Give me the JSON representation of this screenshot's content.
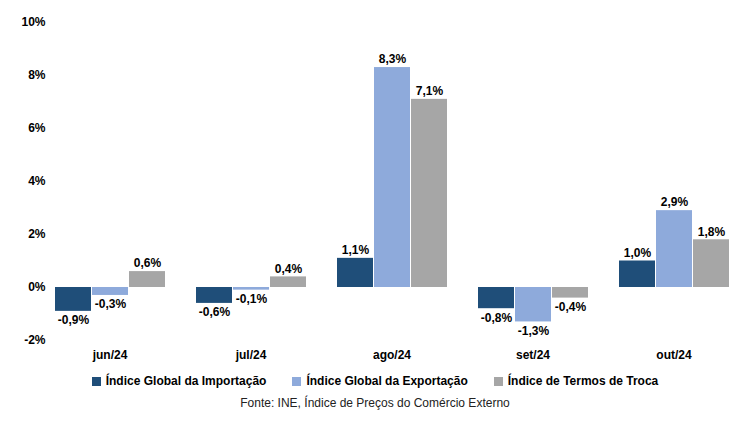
{
  "chart_data": {
    "type": "bar",
    "categories": [
      "jun/24",
      "jul/24",
      "ago/24",
      "set/24",
      "out/24"
    ],
    "series": [
      {
        "name": "Índice Global da Importação",
        "color": "#1F4E79",
        "values": [
          -0.9,
          -0.6,
          1.1,
          -0.8,
          1.0
        ],
        "value_labels": [
          "-0,9%",
          "-0,6%",
          "1,1%",
          "-0,8%",
          "1,0%"
        ]
      },
      {
        "name": "Índice Global da Exportação",
        "color": "#8EAADB",
        "values": [
          -0.3,
          -0.1,
          8.3,
          -1.3,
          2.9
        ],
        "value_labels": [
          "-0,3%",
          "-0,1%",
          "8,3%",
          "-1,3%",
          "2,9%"
        ]
      },
      {
        "name": "Índice de Termos de Troca",
        "color": "#A6A6A6",
        "values": [
          0.6,
          0.4,
          7.1,
          -0.4,
          1.8
        ],
        "value_labels": [
          "0,6%",
          "0,4%",
          "7,1%",
          "-0,4%",
          "1,8%"
        ]
      }
    ],
    "ylim": [
      -2,
      10
    ],
    "yticks": [
      {
        "value": -2,
        "label": "-2%"
      },
      {
        "value": 0,
        "label": "0%"
      },
      {
        "value": 2,
        "label": "2%"
      },
      {
        "value": 4,
        "label": "4%"
      },
      {
        "value": 6,
        "label": "6%"
      },
      {
        "value": 8,
        "label": "8%"
      },
      {
        "value": 10,
        "label": "10%"
      }
    ],
    "grid": false,
    "legend": "bottom",
    "data_labels": true,
    "caption": "Fonte: INE, Índice de Preços do Comércio Externo"
  }
}
